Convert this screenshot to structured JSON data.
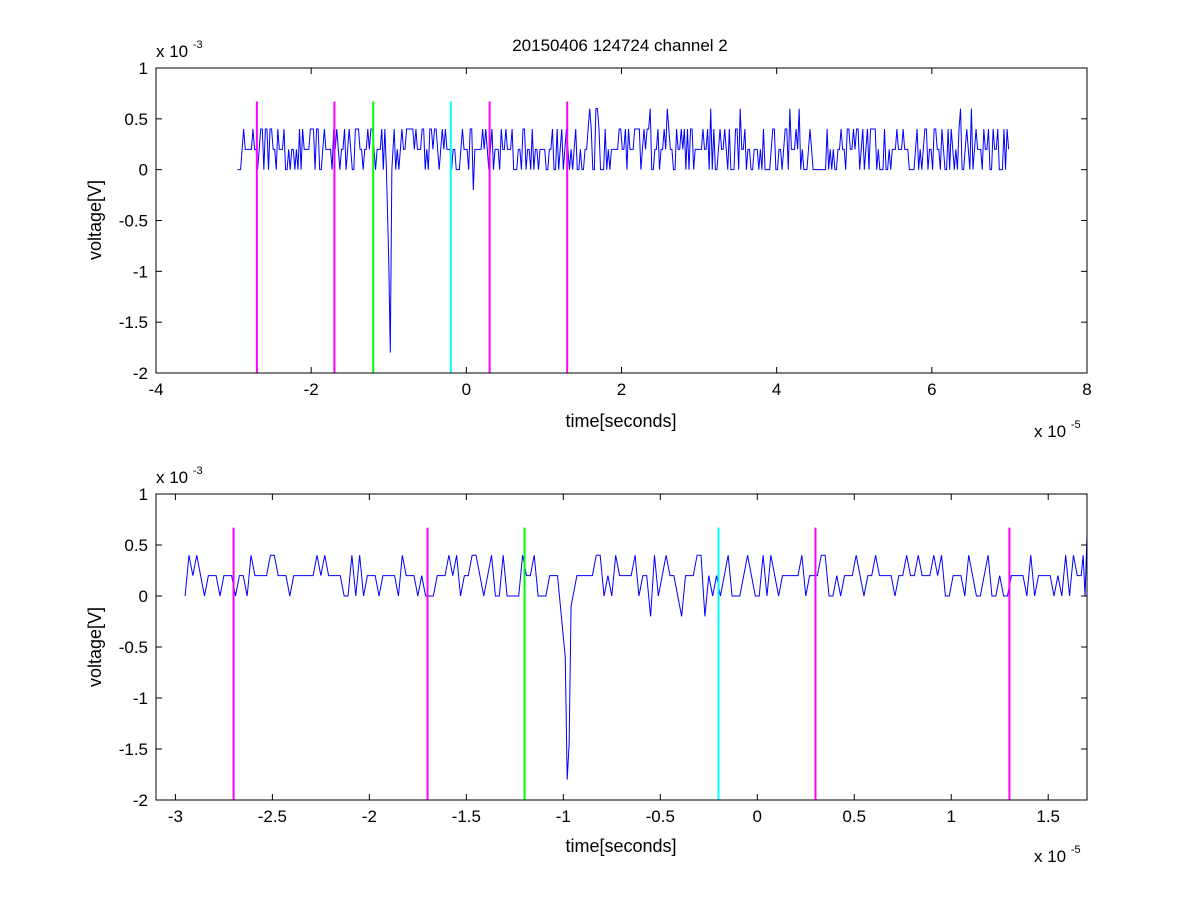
{
  "figure": {
    "title": "20150406 124724 channel 2",
    "background": "#ffffff"
  },
  "chart_data": [
    {
      "type": "line",
      "title": "20150406 124724 channel 2",
      "xlabel": "time[seconds]",
      "ylabel": "voltage[V]",
      "x_exponent_label": "x 10",
      "x_exponent": "-5",
      "y_exponent_label": "x 10",
      "y_exponent": "-3",
      "xlim": [
        -4,
        8
      ],
      "ylim": [
        -2,
        1
      ],
      "xticks": [
        -4,
        -2,
        0,
        2,
        4,
        6,
        8
      ],
      "xtick_labels": [
        "-4",
        "-2",
        "0",
        "2",
        "4",
        "6",
        "8"
      ],
      "yticks": [
        -2,
        -1.5,
        -1,
        -0.5,
        0,
        0.5,
        1
      ],
      "ytick_labels": [
        "-2",
        "-1.5",
        "-1",
        "-0.5",
        "0",
        "0.5",
        "1"
      ],
      "grid": false,
      "signal": {
        "color": "#0000ff",
        "x_start": -2.95,
        "x_end": 7.0,
        "dt": 0.02,
        "baseline": 0.2,
        "levels": [
          0,
          0.2,
          0.4
        ],
        "spike": {
          "x": [
            -1.0,
            -0.98,
            -0.96
          ],
          "y": [
            -0.9,
            -1.8,
            0.0
          ]
        }
      },
      "markers": [
        {
          "x": -2.7,
          "color": "#ff00ff",
          "y_range": [
            -2,
            0.67
          ]
        },
        {
          "x": -1.7,
          "color": "#ff00ff",
          "y_range": [
            -2,
            0.67
          ]
        },
        {
          "x": -1.2,
          "color": "#00ff00",
          "y_range": [
            -2,
            0.67
          ]
        },
        {
          "x": -0.2,
          "color": "#00ffff",
          "y_range": [
            -2,
            0.67
          ]
        },
        {
          "x": 0.3,
          "color": "#ff00ff",
          "y_range": [
            -2,
            0.67
          ]
        },
        {
          "x": 1.3,
          "color": "#ff00ff",
          "y_range": [
            -2,
            0.67
          ]
        }
      ]
    },
    {
      "type": "line",
      "title": "",
      "xlabel": "time[seconds]",
      "ylabel": "voltage[V]",
      "x_exponent_label": "x 10",
      "x_exponent": "-5",
      "y_exponent_label": "x 10",
      "y_exponent": "-3",
      "xlim": [
        -3.1,
        1.7
      ],
      "ylim": [
        -2,
        1
      ],
      "xticks": [
        -3,
        -2.5,
        -2,
        -1.5,
        -1,
        -0.5,
        0,
        0.5,
        1,
        1.5
      ],
      "xtick_labels": [
        "-3",
        "-2.5",
        "-2",
        "-1.5",
        "-1",
        "-0.5",
        "0",
        "0.5",
        "1",
        "1.5"
      ],
      "yticks": [
        -2,
        -1.5,
        -1,
        -0.5,
        0,
        0.5,
        1
      ],
      "ytick_labels": [
        "-2",
        "-1.5",
        "-1",
        "-0.5",
        "0",
        "0.5",
        "1"
      ],
      "grid": false,
      "signal": {
        "color": "#0000ff",
        "x_start": -2.95,
        "x_end": 1.7,
        "dt": 0.02,
        "baseline": 0.2,
        "levels": [
          0,
          0.2,
          0.4
        ],
        "spike": {
          "x": [
            -0.99,
            -0.98,
            -0.97,
            -0.96
          ],
          "y": [
            -0.6,
            -1.8,
            -1.45,
            -0.1
          ]
        },
        "end_rise": {
          "x": [
            1.68,
            1.7
          ],
          "y": [
            0.4,
            0.6
          ]
        }
      },
      "markers": [
        {
          "x": -2.7,
          "color": "#ff00ff",
          "y_range": [
            -2,
            0.67
          ]
        },
        {
          "x": -1.7,
          "color": "#ff00ff",
          "y_range": [
            -2,
            0.67
          ]
        },
        {
          "x": -1.2,
          "color": "#00ff00",
          "y_range": [
            -2,
            0.67
          ]
        },
        {
          "x": -0.2,
          "color": "#00ffff",
          "y_range": [
            -2,
            0.67
          ]
        },
        {
          "x": 0.3,
          "color": "#ff00ff",
          "y_range": [
            -2,
            0.67
          ]
        },
        {
          "x": 1.3,
          "color": "#ff00ff",
          "y_range": [
            -2,
            0.67
          ]
        }
      ]
    }
  ]
}
